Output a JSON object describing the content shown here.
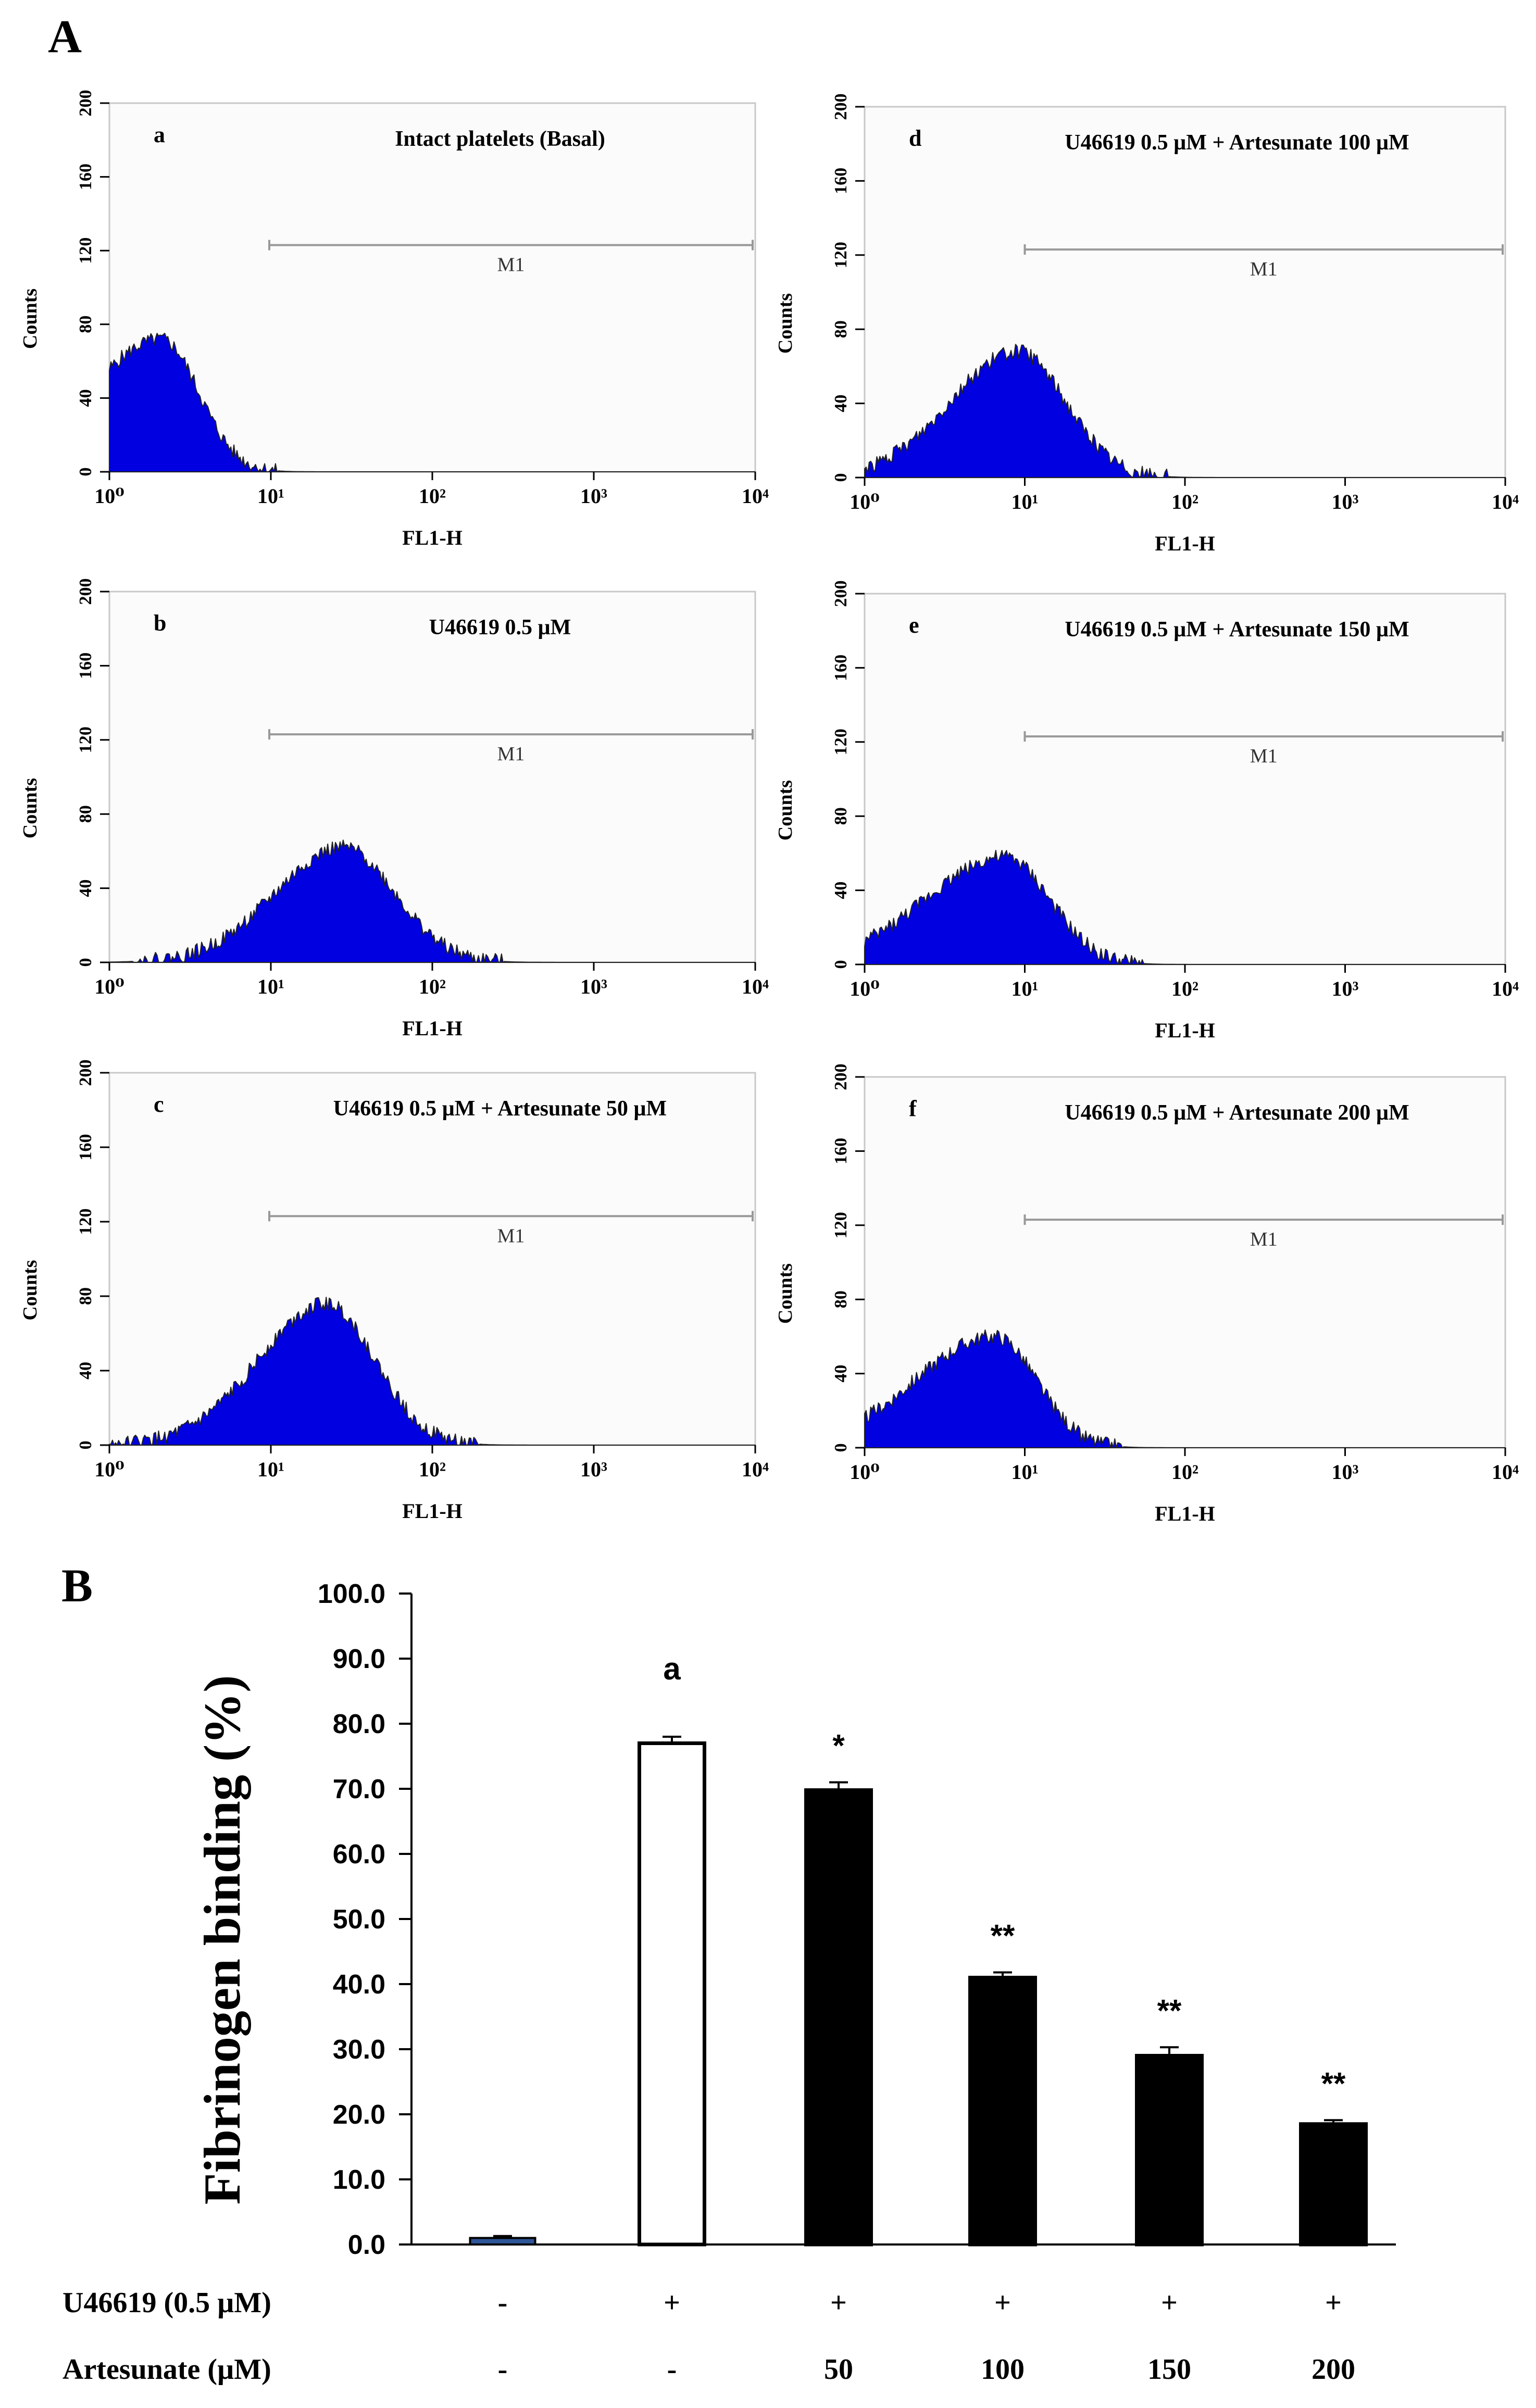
{
  "figure": {
    "panel_a_label": "A",
    "panel_b_label": "B"
  },
  "chart_data": [
    {
      "type": "area",
      "panel_letter": "a",
      "condition": "Intact platelets (Basal)",
      "xlabel": "FL1-H",
      "ylabel": "Counts",
      "x_scale": "log",
      "xlim": [
        1,
        10000
      ],
      "ylim": [
        0,
        200
      ],
      "x_ticks": [
        "10⁰",
        "10¹",
        "10²",
        "10³",
        "10⁴"
      ],
      "y_ticks": [
        "0",
        "40",
        "80",
        "120",
        "160",
        "200"
      ],
      "marker": {
        "label": "M1",
        "from": 10,
        "to": 10000,
        "y": 123
      },
      "color": "#0000e0",
      "profile": {
        "peak_x": 2.1,
        "peak_y": 72,
        "sigma_left": 0.45,
        "sigma_right": 0.23
      }
    },
    {
      "type": "area",
      "panel_letter": "b",
      "condition": "U46619 0.5 µM",
      "xlabel": "FL1-H",
      "ylabel": "Counts",
      "x_scale": "log",
      "xlim": [
        1,
        10000
      ],
      "ylim": [
        0,
        200
      ],
      "x_ticks": [
        "10⁰",
        "10¹",
        "10²",
        "10³",
        "10⁴"
      ],
      "y_ticks": [
        "0",
        "40",
        "80",
        "120",
        "160",
        "200"
      ],
      "marker": {
        "label": "M1",
        "from": 10,
        "to": 10000,
        "y": 123
      },
      "color": "#0000e0",
      "profile": {
        "peak_x": 28,
        "peak_y": 62,
        "sigma_left": 0.42,
        "sigma_right": 0.32
      }
    },
    {
      "type": "area",
      "panel_letter": "c",
      "condition": "U46619 0.5 µM + Artesunate 50 µM",
      "xlabel": "FL1-H",
      "ylabel": "Counts",
      "x_scale": "log",
      "xlim": [
        1,
        10000
      ],
      "ylim": [
        0,
        200
      ],
      "x_ticks": [
        "10⁰",
        "10¹",
        "10²",
        "10³",
        "10⁴"
      ],
      "y_ticks": [
        "0",
        "40",
        "80",
        "120",
        "160",
        "200"
      ],
      "marker": {
        "label": "M1",
        "from": 10,
        "to": 10000,
        "y": 123
      },
      "color": "#0000e0",
      "profile": {
        "peak_x": 22,
        "peak_y": 76,
        "sigma_left": 0.42,
        "sigma_right": 0.3
      }
    },
    {
      "type": "area",
      "panel_letter": "d",
      "condition": "U46619 0.5 µM + Artesunate 100 µM",
      "xlabel": "FL1-H",
      "ylabel": "Counts",
      "x_scale": "log",
      "xlim": [
        1,
        10000
      ],
      "ylim": [
        0,
        200
      ],
      "x_ticks": [
        "10⁰",
        "10¹",
        "10²",
        "10³",
        "10⁴"
      ],
      "y_ticks": [
        "0",
        "40",
        "80",
        "120",
        "160",
        "200"
      ],
      "marker": {
        "label": "M1",
        "from": 10,
        "to": 10000,
        "y": 123
      },
      "color": "#0000e0",
      "profile": {
        "peak_x": 9,
        "peak_y": 68,
        "sigma_left": 0.42,
        "sigma_right": 0.3
      }
    },
    {
      "type": "area",
      "panel_letter": "e",
      "condition": "U46619 0.5 µM + Artesunate 150 µM",
      "xlabel": "FL1-H",
      "ylabel": "Counts",
      "x_scale": "log",
      "xlim": [
        1,
        10000
      ],
      "ylim": [
        0,
        200
      ],
      "x_ticks": [
        "10⁰",
        "10¹",
        "10²",
        "10³",
        "10⁴"
      ],
      "y_ticks": [
        "0",
        "40",
        "80",
        "120",
        "160",
        "200"
      ],
      "marker": {
        "label": "M1",
        "from": 10,
        "to": 10000,
        "y": 123
      },
      "color": "#0000e0",
      "profile": {
        "peak_x": 7.5,
        "peak_y": 58,
        "sigma_left": 0.5,
        "sigma_right": 0.28
      }
    },
    {
      "type": "area",
      "panel_letter": "f",
      "condition": "U46619 0.5 µM + Artesunate 200 µM",
      "xlabel": "FL1-H",
      "ylabel": "Counts",
      "x_scale": "log",
      "xlim": [
        1,
        10000
      ],
      "ylim": [
        0,
        200
      ],
      "x_ticks": [
        "10⁰",
        "10¹",
        "10²",
        "10³",
        "10⁴"
      ],
      "y_ticks": [
        "0",
        "40",
        "80",
        "120",
        "160",
        "200"
      ],
      "marker": {
        "label": "M1",
        "from": 10,
        "to": 10000,
        "y": 123
      },
      "color": "#0000e0",
      "profile": {
        "peak_x": 6.5,
        "peak_y": 60,
        "sigma_left": 0.5,
        "sigma_right": 0.26
      }
    },
    {
      "type": "bar",
      "ylabel": "Fibrinogen binding (%)",
      "ylim": [
        0,
        100
      ],
      "y_ticks": [
        "0.0",
        "10.0",
        "20.0",
        "30.0",
        "40.0",
        "50.0",
        "60.0",
        "70.0",
        "80.0",
        "90.0",
        "100.0"
      ],
      "values": [
        1.0,
        77.0,
        69.8,
        41.0,
        29.0,
        18.5
      ],
      "errors": [
        0.3,
        1.0,
        1.2,
        0.8,
        1.3,
        0.6
      ],
      "annotations": [
        "",
        "a",
        "*",
        "**",
        "**",
        "**"
      ],
      "fill_colors": [
        "#2e5597",
        "#ffffff",
        "#000000",
        "#000000",
        "#000000",
        "#000000"
      ],
      "row_labels": [
        "U46619  (0.5 µM)",
        "Artesunate (µM)"
      ],
      "u46619_row": [
        "-",
        "+",
        "+",
        "+",
        "+",
        "+"
      ],
      "artesunate_row": [
        "-",
        "-",
        "50",
        "100",
        "150",
        "200"
      ]
    }
  ]
}
